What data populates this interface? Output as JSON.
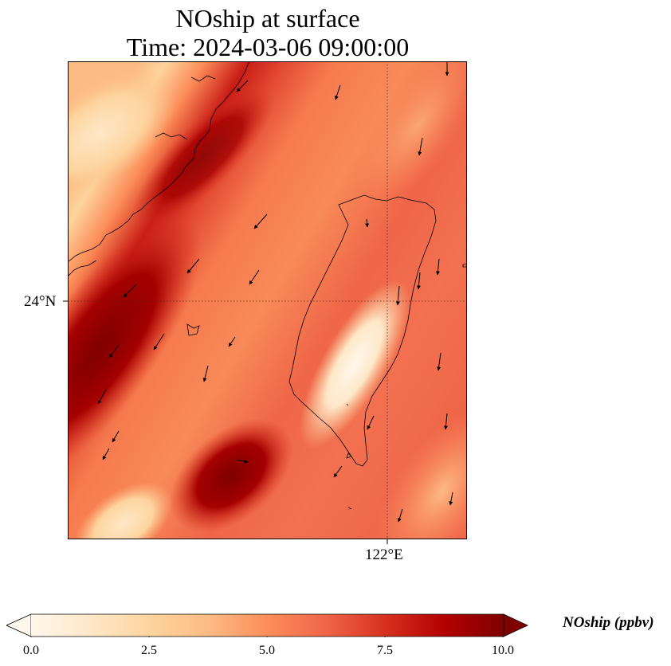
{
  "title": {
    "line1": "NOship at surface",
    "line2": "Time: 2024-03-06 09:00:00"
  },
  "axes": {
    "lat_tick_label": "24°N",
    "lon_tick_label": "122°E"
  },
  "colorbar": {
    "label": "NOship (ppbv)",
    "ticks": [
      "0.0",
      "2.5",
      "5.0",
      "7.5",
      "10.0"
    ],
    "range": [
      0.0,
      10.0
    ],
    "colormap": "OrRd",
    "colors": [
      "#fff7ec",
      "#fee8c8",
      "#fdd49e",
      "#fdbb84",
      "#fc8d59",
      "#ef6548",
      "#d7301f",
      "#b30000",
      "#7f0000"
    ]
  }
}
